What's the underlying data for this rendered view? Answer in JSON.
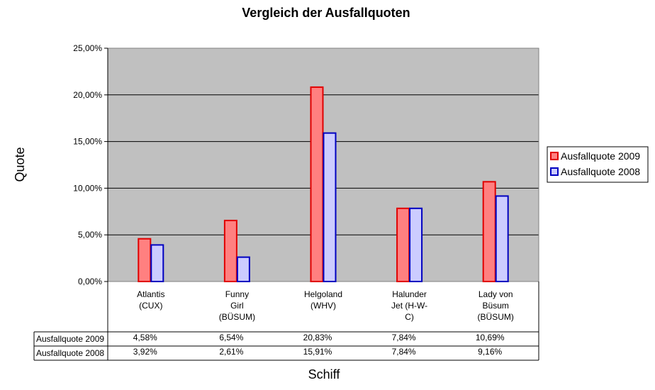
{
  "chart_data": {
    "type": "bar",
    "title": "Vergleich der Ausfallquoten",
    "xlabel": "Schiff",
    "ylabel": "Quote",
    "ylim": [
      0,
      25
    ],
    "y_ticks": [
      "0,00%",
      "5,00%",
      "10,00%",
      "15,00%",
      "20,00%",
      "25,00%"
    ],
    "grid": true,
    "legend_position": "right",
    "categories": [
      [
        "Atlantis",
        "(CUX)"
      ],
      [
        "Funny",
        "Girl",
        "(BÜSUM)"
      ],
      [
        "Helgoland",
        "(WHV)"
      ],
      [
        "Halunder",
        "Jet (H-W-",
        "C)"
      ],
      [
        "Lady von",
        "Büsum",
        "(BÜSUM)"
      ]
    ],
    "series": [
      {
        "name": "Ausfallquote 2009",
        "values": [
          4.58,
          6.54,
          20.83,
          7.84,
          10.69
        ],
        "labels": [
          "4,58%",
          "6,54%",
          "20,83%",
          "7,84%",
          "10,69%"
        ],
        "fill": "#ff8080",
        "stroke": "#e00000"
      },
      {
        "name": "Ausfallquote 2008",
        "values": [
          3.92,
          2.61,
          15.91,
          7.84,
          9.16
        ],
        "labels": [
          "3,92%",
          "2,61%",
          "15,91%",
          "7,84%",
          "9,16%"
        ],
        "fill": "#ccccff",
        "stroke": "#0000c0"
      }
    ],
    "plot_background": "#c0c0c0"
  }
}
